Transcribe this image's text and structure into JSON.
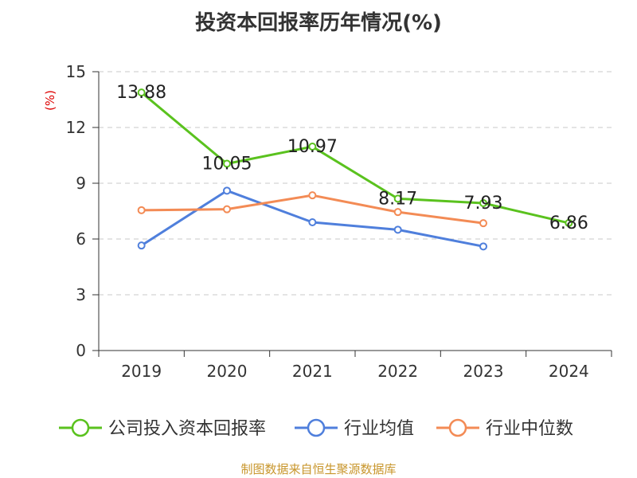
{
  "title": "投资本回报率历年情况(%)",
  "source": "制图数据来自恒生聚源数据库",
  "chart_data": {
    "type": "line",
    "title": "投资本回报率历年情况(%)",
    "ylabel": "(%)",
    "ylim": [
      0,
      15
    ],
    "yticks": [
      0,
      3,
      6,
      9,
      12,
      15
    ],
    "grid": true,
    "legend_position": "bottom",
    "categories": [
      "2019",
      "2020",
      "2021",
      "2022",
      "2023",
      "2024"
    ],
    "series": [
      {
        "name": "公司投入资本回报率",
        "color": "#5ac21e",
        "values": [
          13.88,
          10.05,
          10.97,
          8.17,
          7.93,
          6.86
        ],
        "labels": true
      },
      {
        "name": "行业均值",
        "color": "#4f7fdc",
        "values": [
          5.65,
          8.6,
          6.9,
          6.5,
          5.6,
          null
        ],
        "labels": false
      },
      {
        "name": "行业中位数",
        "color": "#f38b55",
        "values": [
          7.55,
          7.6,
          8.35,
          7.45,
          6.85,
          null
        ],
        "labels": false
      }
    ]
  }
}
